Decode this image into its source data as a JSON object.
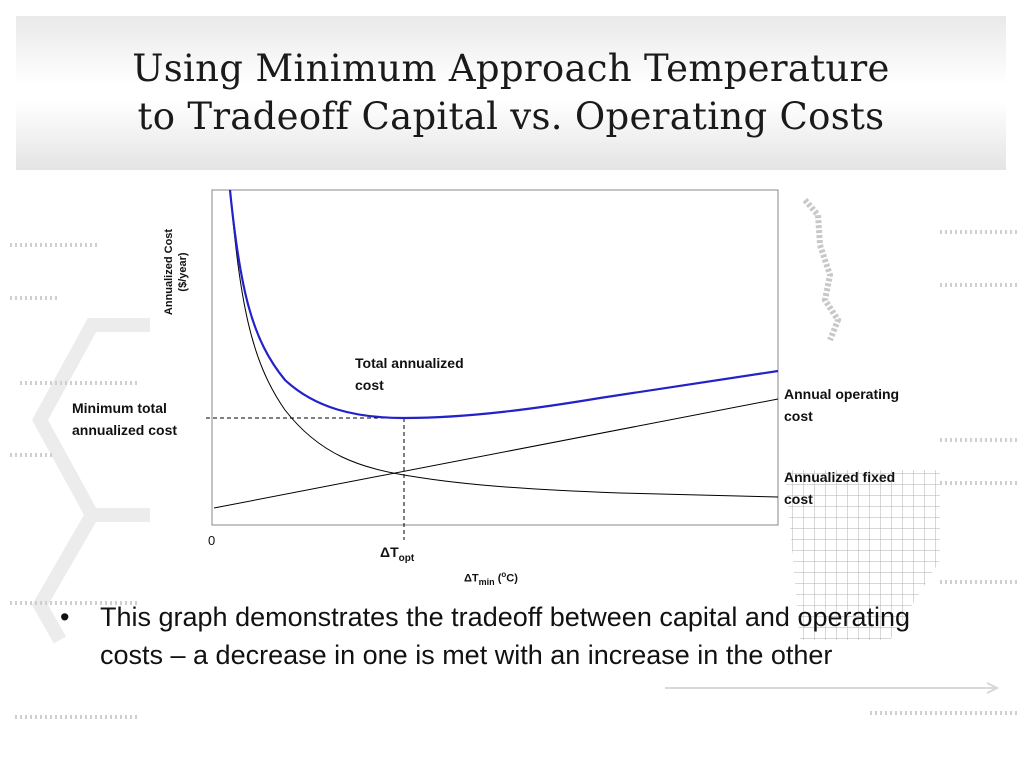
{
  "slide": {
    "title_line1": "Using Minimum Approach Temperature",
    "title_line2": "to Tradeoff Capital vs. Operating Costs"
  },
  "diagram": {
    "ylabel_line1": "Annualized Cost",
    "ylabel_line2": "($/year)",
    "origin_label": "0",
    "xlabel_symbol": "ΔT",
    "xlabel_subscript": "min",
    "xlabel_unit_open": " (",
    "xlabel_unit_sup": "o",
    "xlabel_unit_close": "C)",
    "optimum_symbol": "ΔT",
    "optimum_subscript": "opt",
    "total_label_line1": "Total annualized",
    "total_label_line2": "cost",
    "min_total_line1": "Minimum total",
    "min_total_line2": "annualized cost",
    "operating_line1": "Annual operating",
    "operating_line2": "cost",
    "fixed_line1": "Annualized fixed",
    "fixed_line2": "cost",
    "total_color": "#2222c8",
    "curve_color": "#000000"
  },
  "bullets": [
    {
      "marker": "•",
      "text": "This graph demonstrates the tradeoff between capital and operating costs – a decrease in one is met with an increase in the other"
    }
  ]
}
